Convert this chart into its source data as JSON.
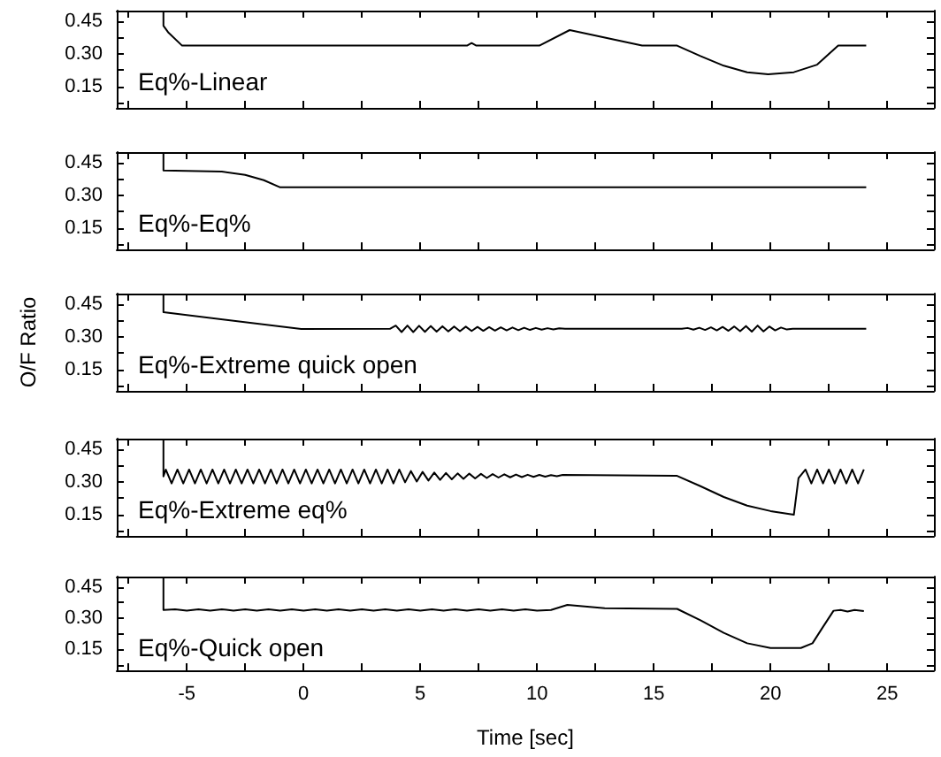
{
  "chart_data": [
    {
      "type": "line",
      "annotations": [
        "Eq%-Linear"
      ],
      "tick_labels": "y",
      "xlim": [
        -8,
        27
      ],
      "xticks": [
        {
          "value": -7.5,
          "label": null
        },
        -5,
        {
          "value": -2.5,
          "label": null
        },
        0,
        {
          "value": 2.5,
          "label": null
        },
        5,
        {
          "value": 7.5,
          "label": null
        },
        10,
        {
          "value": 12.5,
          "label": null
        },
        15,
        {
          "value": 17.5,
          "label": null
        },
        20,
        {
          "value": 22.5,
          "label": null
        },
        25
      ],
      "ylim": [
        0.05,
        0.5
      ],
      "yticks": [
        {
          "value": 0.075,
          "label": null
        },
        0.15,
        {
          "value": 0.225,
          "label": null
        },
        {
          "value": 0.3,
          "label": "0.30"
        },
        {
          "value": 0.375,
          "label": null
        },
        0.45
      ],
      "grid": false,
      "series": [
        {
          "color": "#000000",
          "x": [
            -6,
            -6,
            -5.8,
            -5.2,
            7.0,
            7.2,
            7.4,
            10.1,
            11.4,
            14.5,
            16.0,
            17,
            18,
            19,
            19.9,
            21,
            22,
            22.9,
            24.1
          ],
          "values": [
            0.5,
            0.43,
            0.4,
            0.338,
            0.338,
            0.35,
            0.338,
            0.338,
            0.41,
            0.338,
            0.338,
            0.29,
            0.245,
            0.215,
            0.205,
            0.215,
            0.25,
            0.338,
            0.338
          ]
        }
      ]
    },
    {
      "type": "line",
      "annotations": [
        "Eq%-Eq%"
      ],
      "tick_labels": "y",
      "xlim": [
        -8,
        27
      ],
      "xticks": [
        {
          "value": -7.5,
          "label": null
        },
        -5,
        {
          "value": -2.5,
          "label": null
        },
        0,
        {
          "value": 2.5,
          "label": null
        },
        5,
        {
          "value": 7.5,
          "label": null
        },
        10,
        {
          "value": 12.5,
          "label": null
        },
        15,
        {
          "value": 17.5,
          "label": null
        },
        20,
        {
          "value": 22.5,
          "label": null
        },
        25
      ],
      "ylim": [
        0.05,
        0.5
      ],
      "yticks": [
        {
          "value": 0.075,
          "label": null
        },
        0.15,
        {
          "value": 0.225,
          "label": null
        },
        {
          "value": 0.3,
          "label": "0.30"
        },
        {
          "value": 0.375,
          "label": null
        },
        0.45
      ],
      "grid": false,
      "series": [
        {
          "color": "#000000",
          "x": [
            -6,
            -6,
            -3.5,
            -2.5,
            -1.7,
            -1.0,
            24.1
          ],
          "values": [
            0.5,
            0.415,
            0.41,
            0.395,
            0.37,
            0.337,
            0.337
          ]
        }
      ]
    },
    {
      "type": "line",
      "annotations": [
        "Eq%-Extreme quick open"
      ],
      "ylabel": "O/F Ratio",
      "tick_labels": "y",
      "xlim": [
        -8,
        27
      ],
      "xticks": [
        {
          "value": -7.5,
          "label": null
        },
        -5,
        {
          "value": -2.5,
          "label": null
        },
        0,
        {
          "value": 2.5,
          "label": null
        },
        5,
        {
          "value": 7.5,
          "label": null
        },
        10,
        {
          "value": 12.5,
          "label": null
        },
        15,
        {
          "value": 17.5,
          "label": null
        },
        20,
        {
          "value": 22.5,
          "label": null
        },
        25
      ],
      "ylim": [
        0.05,
        0.5
      ],
      "yticks": [
        {
          "value": 0.075,
          "label": null
        },
        0.15,
        {
          "value": 0.225,
          "label": null
        },
        {
          "value": 0.3,
          "label": "0.30"
        },
        {
          "value": 0.375,
          "label": null
        },
        0.45
      ],
      "grid": false,
      "series": [
        {
          "color": "#000000",
          "x": [
            -6,
            -6,
            -0.1,
            3.7,
            3.95,
            4.2,
            4.45,
            4.7,
            4.95,
            5.2,
            5.45,
            5.7,
            5.95,
            6.2,
            6.45,
            6.7,
            6.95,
            7.2,
            7.45,
            7.7,
            7.95,
            8.2,
            8.45,
            8.7,
            8.95,
            9.2,
            9.45,
            9.7,
            9.95,
            10.2,
            10.45,
            10.7,
            10.95,
            11.2,
            16.2,
            16.45,
            16.7,
            16.95,
            17.2,
            17.45,
            17.7,
            17.95,
            18.2,
            18.45,
            18.7,
            18.95,
            19.2,
            19.45,
            19.7,
            19.95,
            20.2,
            20.45,
            20.7,
            20.95,
            24.1
          ],
          "values": [
            0.5,
            0.414,
            0.336,
            0.337,
            0.352,
            0.322,
            0.352,
            0.322,
            0.351,
            0.323,
            0.35,
            0.324,
            0.349,
            0.325,
            0.348,
            0.326,
            0.347,
            0.327,
            0.346,
            0.328,
            0.345,
            0.329,
            0.344,
            0.33,
            0.343,
            0.331,
            0.342,
            0.332,
            0.341,
            0.333,
            0.34,
            0.334,
            0.339,
            0.337,
            0.337,
            0.341,
            0.333,
            0.342,
            0.332,
            0.344,
            0.33,
            0.346,
            0.328,
            0.348,
            0.326,
            0.35,
            0.324,
            0.352,
            0.325,
            0.348,
            0.33,
            0.343,
            0.334,
            0.337,
            0.337
          ]
        }
      ]
    },
    {
      "type": "line",
      "annotations": [
        "Eq%-Extreme eq%"
      ],
      "tick_labels": "y",
      "xlim": [
        -8,
        27
      ],
      "xticks": [
        {
          "value": -7.5,
          "label": null
        },
        -5,
        {
          "value": -2.5,
          "label": null
        },
        0,
        {
          "value": 2.5,
          "label": null
        },
        5,
        {
          "value": 7.5,
          "label": null
        },
        10,
        {
          "value": 12.5,
          "label": null
        },
        15,
        {
          "value": 17.5,
          "label": null
        },
        20,
        {
          "value": 22.5,
          "label": null
        },
        25
      ],
      "ylim": [
        0.05,
        0.5
      ],
      "yticks": [
        {
          "value": 0.075,
          "label": null
        },
        0.15,
        {
          "value": 0.225,
          "label": null
        },
        {
          "value": 0.3,
          "label": "0.30"
        },
        {
          "value": 0.375,
          "label": null
        },
        0.45
      ],
      "grid": false,
      "series": [
        {
          "color": "#000000",
          "x": [
            -6,
            -6,
            -5.9,
            -5.65,
            -5.4,
            -5.15,
            -4.9,
            -4.65,
            -4.4,
            -4.15,
            -3.9,
            -3.65,
            -3.4,
            -3.15,
            -2.9,
            -2.65,
            -2.4,
            -2.15,
            -1.9,
            -1.65,
            -1.4,
            -1.15,
            -0.9,
            -0.65,
            -0.4,
            -0.15,
            0.1,
            0.35,
            0.6,
            0.85,
            1.1,
            1.35,
            1.6,
            1.85,
            2.1,
            2.35,
            2.6,
            2.85,
            3.1,
            3.35,
            3.6,
            3.85,
            4.1,
            4.35,
            4.6,
            4.85,
            5.1,
            5.35,
            5.6,
            5.85,
            6.1,
            6.35,
            6.6,
            6.85,
            7.1,
            7.35,
            7.6,
            7.85,
            8.1,
            8.35,
            8.6,
            8.85,
            9.1,
            9.35,
            9.6,
            9.85,
            10.1,
            10.35,
            10.6,
            10.85,
            11.1,
            16.0,
            17,
            18,
            19,
            20,
            21.0,
            21.2,
            21.5,
            21.75,
            22.0,
            22.25,
            22.5,
            22.75,
            23.0,
            23.25,
            23.5,
            23.75,
            24.0
          ],
          "values": [
            0.5,
            0.325,
            0.357,
            0.293,
            0.357,
            0.293,
            0.357,
            0.293,
            0.357,
            0.293,
            0.357,
            0.293,
            0.357,
            0.293,
            0.357,
            0.293,
            0.357,
            0.293,
            0.357,
            0.293,
            0.357,
            0.293,
            0.357,
            0.293,
            0.357,
            0.293,
            0.357,
            0.293,
            0.357,
            0.293,
            0.357,
            0.293,
            0.357,
            0.293,
            0.357,
            0.293,
            0.357,
            0.293,
            0.357,
            0.293,
            0.357,
            0.293,
            0.357,
            0.298,
            0.35,
            0.302,
            0.346,
            0.306,
            0.343,
            0.309,
            0.341,
            0.312,
            0.339,
            0.314,
            0.338,
            0.316,
            0.337,
            0.318,
            0.336,
            0.32,
            0.335,
            0.321,
            0.334,
            0.322,
            0.333,
            0.323,
            0.332,
            0.324,
            0.331,
            0.326,
            0.332,
            0.328,
            0.28,
            0.23,
            0.19,
            0.165,
            0.148,
            0.317,
            0.357,
            0.293,
            0.357,
            0.293,
            0.357,
            0.293,
            0.357,
            0.293,
            0.357,
            0.293,
            0.357
          ]
        }
      ]
    },
    {
      "type": "line",
      "annotations": [
        "Eq%-Quick open"
      ],
      "xlabel": "Time [sec]",
      "xlim": [
        -8,
        27
      ],
      "xticks": [
        {
          "value": -7.5,
          "label": null
        },
        -5,
        {
          "value": -2.5,
          "label": null
        },
        0,
        {
          "value": 2.5,
          "label": null
        },
        5,
        {
          "value": 7.5,
          "label": null
        },
        10,
        {
          "value": 12.5,
          "label": null
        },
        15,
        {
          "value": 17.5,
          "label": null
        },
        20,
        {
          "value": 22.5,
          "label": null
        },
        25
      ],
      "ylim": [
        0.05,
        0.5
      ],
      "yticks": [
        {
          "value": 0.075,
          "label": null
        },
        0.15,
        {
          "value": 0.225,
          "label": null
        },
        {
          "value": 0.3,
          "label": "0.30"
        },
        {
          "value": 0.375,
          "label": null
        },
        0.45
      ],
      "grid": false,
      "series": [
        {
          "color": "#000000",
          "x": [
            -6,
            -6,
            -5.5,
            -5,
            -4.5,
            -4,
            -3.5,
            -3,
            -2.5,
            -2,
            -1.5,
            -1,
            -0.5,
            0,
            0.5,
            1,
            1.5,
            2,
            2.5,
            3,
            3.5,
            4,
            4.5,
            5,
            5.5,
            6,
            6.5,
            7,
            7.5,
            8,
            8.5,
            9,
            9.5,
            10,
            10.6,
            11.3,
            12.9,
            16.0,
            17,
            18,
            19,
            20,
            21.3,
            21.8,
            22.2,
            22.7,
            23.0,
            23.3,
            23.6,
            24.0
          ],
          "values": [
            0.5,
            0.34,
            0.343,
            0.337,
            0.343,
            0.337,
            0.343,
            0.337,
            0.343,
            0.337,
            0.343,
            0.337,
            0.343,
            0.337,
            0.343,
            0.337,
            0.343,
            0.337,
            0.343,
            0.337,
            0.343,
            0.337,
            0.343,
            0.337,
            0.343,
            0.337,
            0.343,
            0.337,
            0.343,
            0.337,
            0.343,
            0.337,
            0.343,
            0.337,
            0.34,
            0.364,
            0.348,
            0.345,
            0.29,
            0.23,
            0.18,
            0.157,
            0.157,
            0.18,
            0.25,
            0.336,
            0.34,
            0.332,
            0.34,
            0.334
          ]
        }
      ]
    }
  ]
}
